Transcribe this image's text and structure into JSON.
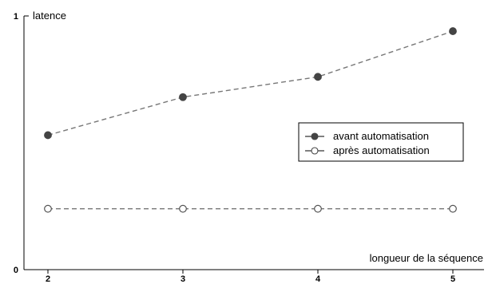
{
  "chart_data": {
    "type": "line",
    "title": "",
    "ylabel": "latence",
    "xlabel": "longueur de la séquence",
    "x": [
      2,
      3,
      4,
      5
    ],
    "xticks": [
      "2",
      "3",
      "4",
      "5"
    ],
    "ylim": [
      0,
      1
    ],
    "yticks": [
      "0",
      "1"
    ],
    "grid": false,
    "legend_position": "right",
    "series": [
      {
        "name": "avant automatisation",
        "values": [
          0.53,
          0.68,
          0.76,
          0.94
        ],
        "marker": "filled-circle",
        "color": "#777777"
      },
      {
        "name": "après automatisation",
        "values": [
          0.24,
          0.24,
          0.24,
          0.24
        ],
        "marker": "open-circle",
        "color": "#777777"
      }
    ]
  }
}
